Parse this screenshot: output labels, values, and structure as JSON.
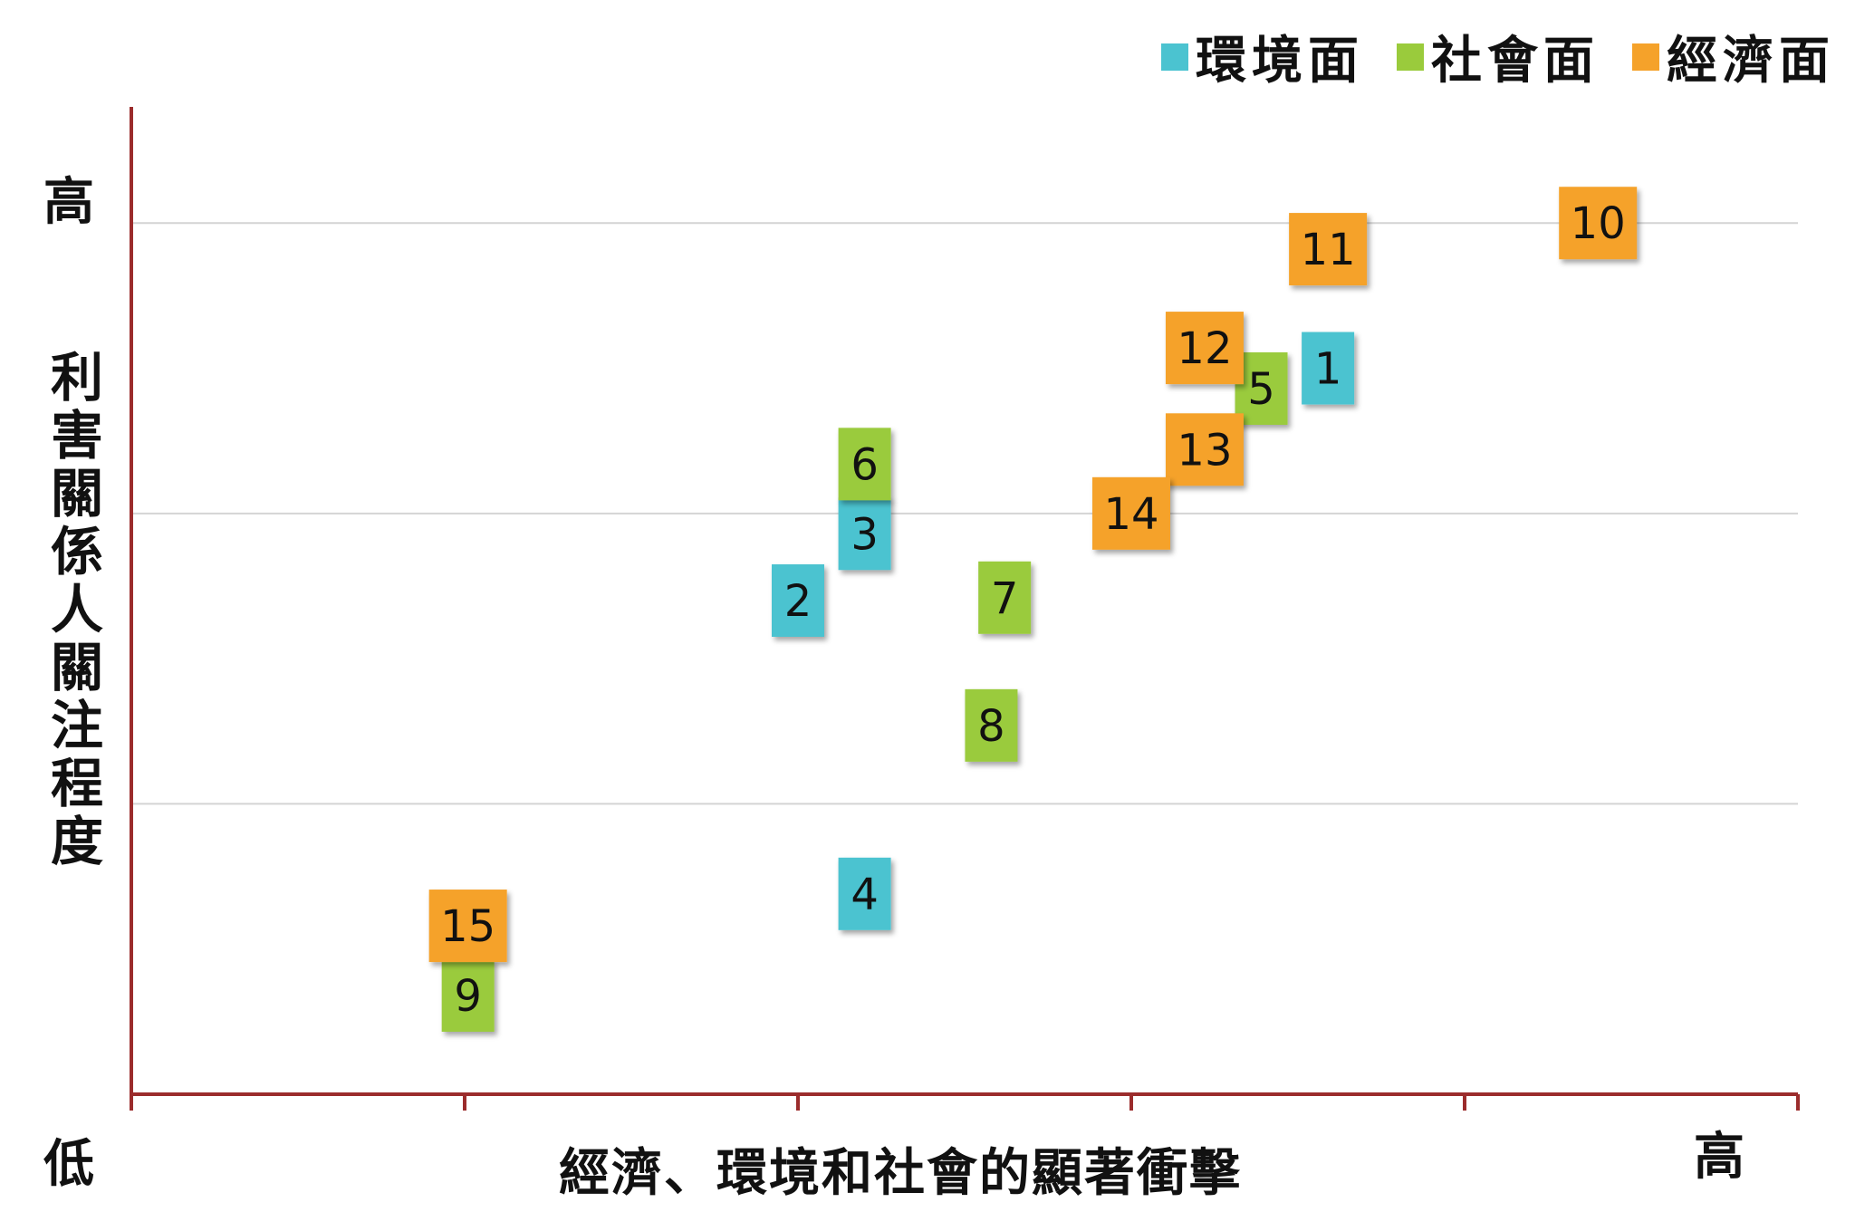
{
  "legend": [
    {
      "label": "環境面",
      "color": "#4bc3d0"
    },
    {
      "label": "社會面",
      "color": "#9acb3c"
    },
    {
      "label": "經濟面",
      "color": "#f5a22a"
    }
  ],
  "axis": {
    "y_high": "高",
    "x_low": "低",
    "x_high": "高",
    "xlabel": "經濟、環境和社會的顯著衝擊",
    "ylabel": "利害關係人關注程度"
  },
  "chart_data": {
    "type": "scatter",
    "title": "",
    "xlabel": "經濟、環境和社會的顯著衝擊",
    "ylabel": "利害關係人關注程度",
    "xlim": [
      0,
      5
    ],
    "ylim": [
      0,
      3.4
    ],
    "grid": "horizontal",
    "legend_position": "top-right",
    "series": [
      {
        "name": "環境面",
        "color": "#4bc3d0",
        "points": [
          {
            "label": "1",
            "x": 3.59,
            "y": 2.5
          },
          {
            "label": "2",
            "x": 2.0,
            "y": 1.7
          },
          {
            "label": "3",
            "x": 2.2,
            "y": 1.93
          },
          {
            "label": "4",
            "x": 2.2,
            "y": 0.69
          }
        ]
      },
      {
        "name": "社會面",
        "color": "#9acb3c",
        "points": [
          {
            "label": "5",
            "x": 3.39,
            "y": 2.43
          },
          {
            "label": "6",
            "x": 2.2,
            "y": 2.17
          },
          {
            "label": "7",
            "x": 2.62,
            "y": 1.71
          },
          {
            "label": "8",
            "x": 2.58,
            "y": 1.27
          },
          {
            "label": "9",
            "x": 1.01,
            "y": 0.34
          }
        ]
      },
      {
        "name": "經濟面",
        "color": "#f5a22a",
        "points": [
          {
            "label": "10",
            "x": 4.4,
            "y": 3.0
          },
          {
            "label": "11",
            "x": 3.59,
            "y": 2.91
          },
          {
            "label": "12",
            "x": 3.22,
            "y": 2.57
          },
          {
            "label": "13",
            "x": 3.22,
            "y": 2.22
          },
          {
            "label": "14",
            "x": 3.0,
            "y": 2.0
          },
          {
            "label": "15",
            "x": 1.01,
            "y": 0.58
          }
        ]
      }
    ]
  }
}
